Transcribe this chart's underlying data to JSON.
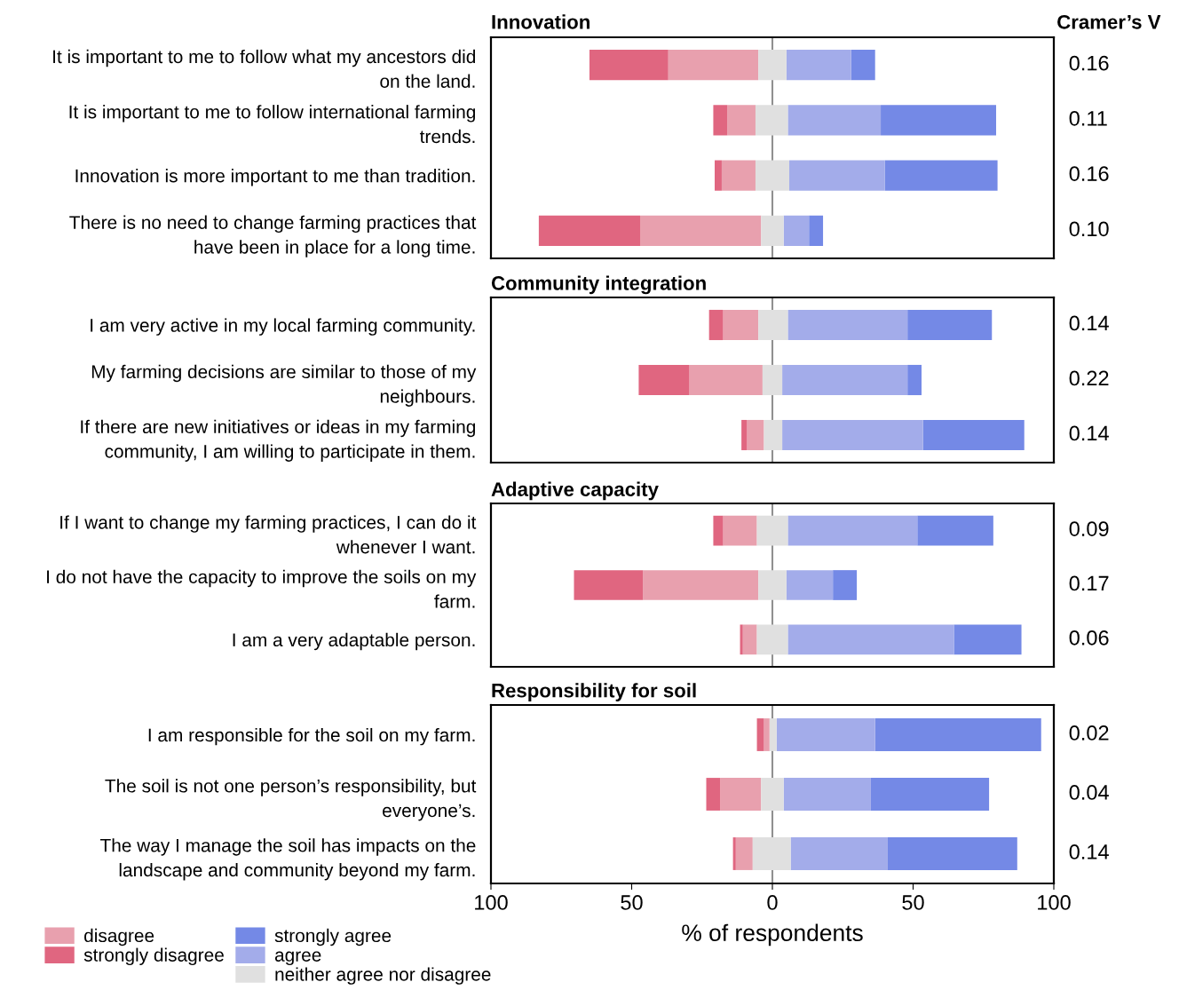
{
  "chart_data": [
    {
      "type": "bar",
      "orientation": "horizontal",
      "title": "Innovation",
      "y2label": "Cramer’s V",
      "legend": "bottom",
      "categories": [
        "It is important to me to follow what my ancestors did\non the land.",
        "It is important to me to follow international farming\ntrends.",
        "Innovation is more important to me than tradition.",
        "There is no need to change farming practices that\nhave been in place for a long time."
      ],
      "series": [
        {
          "name": "disagree",
          "color": "#e8a0ae",
          "values": [
            32,
            10,
            12,
            43
          ],
          "base": [
            -37,
            -16,
            -18,
            -47
          ]
        },
        {
          "name": "strongly disagree",
          "color": "#e06680",
          "values": [
            28,
            5,
            2.5,
            36
          ],
          "base": [
            -65,
            -21,
            -20.5,
            -83
          ]
        },
        {
          "name": "strongly agree",
          "color": "#7489e6",
          "values": [
            8.5,
            41,
            40,
            5
          ],
          "base": [
            28,
            38.5,
            40,
            13
          ]
        },
        {
          "name": "agree",
          "color": "#a3acea",
          "values": [
            23,
            33,
            34,
            9
          ],
          "base": [
            5,
            5.5,
            6,
            4
          ]
        },
        {
          "name": "neither agree nor disagree",
          "color": "#e0e0e0",
          "values": [
            10,
            11.5,
            12,
            8
          ],
          "base": [
            -5,
            -6,
            -6,
            -4
          ]
        }
      ],
      "annotations": [
        "0.16",
        "0.11",
        "0.16",
        "0.10"
      ],
      "xlim": [
        -100,
        100
      ],
      "tick_labels": false,
      "ref_lines": [
        {
          "axis": "x",
          "value": 0,
          "color": "#909090"
        }
      ]
    },
    {
      "type": "bar",
      "orientation": "horizontal",
      "title": "Community integration",
      "categories": [
        "I am very active in my local farming community.",
        "My farming decisions are similar to those of my\nneighbours.",
        "If there are new initiatives or ideas in my farming\ncommunity, I am willing to participate in them."
      ],
      "series": [
        {
          "color": "#e8a0ae",
          "values": [
            12.5,
            26,
            6
          ],
          "base": [
            -17.5,
            -29.5,
            -9
          ]
        },
        {
          "color": "#e06680",
          "values": [
            5,
            18,
            2
          ],
          "base": [
            -22.5,
            -47.5,
            -11
          ]
        },
        {
          "color": "#7489e6",
          "values": [
            30,
            5,
            36
          ],
          "base": [
            48,
            48,
            53.5
          ]
        },
        {
          "color": "#a3acea",
          "values": [
            42.5,
            44.5,
            50
          ],
          "base": [
            5.5,
            3.5,
            3.5
          ]
        },
        {
          "color": "#e0e0e0",
          "values": [
            10.5,
            7,
            6.5
          ],
          "base": [
            -5,
            -3.5,
            -3
          ]
        }
      ],
      "annotations": [
        "0.14",
        "0.22",
        "0.14"
      ],
      "xlim": [
        -100,
        100
      ],
      "tick_labels": false,
      "ref_lines": [
        {
          "axis": "x",
          "value": 0,
          "color": "#909090"
        }
      ]
    },
    {
      "type": "bar",
      "orientation": "horizontal",
      "title": "Adaptive capacity",
      "categories": [
        "If I want to change my farming practices, I can do it\nwhenever I want.",
        "I do not have the capacity to improve the soils on my\nfarm.",
        "I am a very adaptable person."
      ],
      "series": [
        {
          "color": "#e8a0ae",
          "values": [
            12,
            41,
            5
          ],
          "base": [
            -17.5,
            -46,
            -10.5
          ]
        },
        {
          "color": "#e06680",
          "values": [
            3.5,
            24.5,
            1
          ],
          "base": [
            -21,
            -70.5,
            -11.5
          ]
        },
        {
          "color": "#7489e6",
          "values": [
            27,
            8.5,
            24
          ],
          "base": [
            51.5,
            21.5,
            64.5
          ]
        },
        {
          "color": "#a3acea",
          "values": [
            46,
            16.5,
            59
          ],
          "base": [
            5.5,
            5,
            5.5
          ]
        },
        {
          "color": "#e0e0e0",
          "values": [
            11,
            10,
            11
          ],
          "base": [
            -5.5,
            -5,
            -5.5
          ]
        }
      ],
      "annotations": [
        "0.09",
        "0.17",
        "0.06"
      ],
      "xlim": [
        -100,
        100
      ],
      "tick_labels": false,
      "ref_lines": [
        {
          "axis": "x",
          "value": 0,
          "color": "#909090"
        }
      ]
    },
    {
      "type": "bar",
      "orientation": "horizontal",
      "title": "Responsibility for soil",
      "xlabel": "% of respondents",
      "categories": [
        "I am responsible for the soil on my farm.",
        "The soil is not one person’s responsibility, but\neveryone’s.",
        "The way I manage the soil has impacts on the\nlandscape and community beyond my farm."
      ],
      "series": [
        {
          "color": "#e8a0ae",
          "values": [
            2,
            14.5,
            6
          ],
          "base": [
            -3,
            -18.5,
            -13
          ]
        },
        {
          "color": "#e06680",
          "values": [
            2.5,
            5,
            1
          ],
          "base": [
            -5.5,
            -23.5,
            -14
          ]
        },
        {
          "color": "#7489e6",
          "values": [
            59,
            42,
            46
          ],
          "base": [
            36.5,
            35,
            41
          ]
        },
        {
          "color": "#a3acea",
          "values": [
            35,
            31,
            34.5
          ],
          "base": [
            1.5,
            4,
            6.5
          ]
        },
        {
          "color": "#e0e0e0",
          "values": [
            2.5,
            8,
            13.5
          ],
          "base": [
            -1,
            -4,
            -7
          ]
        }
      ],
      "annotations": [
        "0.02",
        "0.04",
        "0.14"
      ],
      "xlim": [
        -100,
        100
      ],
      "xticks": [
        {
          "value": -100,
          "label": "100"
        },
        {
          "value": -50,
          "label": "50"
        },
        0,
        50,
        100
      ],
      "tick_labels": "x",
      "ref_lines": [
        {
          "axis": "x",
          "value": 0,
          "color": "#909090"
        }
      ]
    }
  ]
}
